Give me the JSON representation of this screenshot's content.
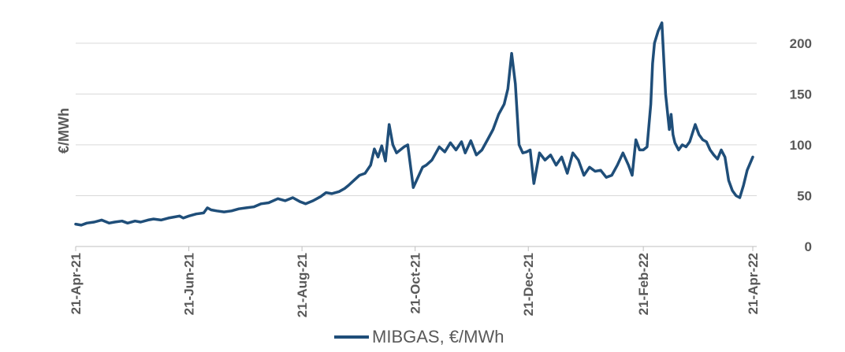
{
  "colors": {
    "series": "#1f4e79",
    "grid": "#d9d9d9",
    "axis_text": "#595959"
  },
  "chart_data": {
    "type": "line",
    "title": "",
    "xlabel": "",
    "ylabel": "€/MWh",
    "ylim": [
      0,
      220
    ],
    "yticks": [
      0,
      50,
      100,
      150,
      200
    ],
    "grid": true,
    "legend_position": "bottom",
    "x_tick_labels": [
      "21-Apr-21",
      "21-Jun-21",
      "21-Aug-21",
      "21-Oct-21",
      "21-Dec-21",
      "21-Feb-22",
      "21-Apr-22"
    ],
    "x_tick_dates": [
      "2021-04-21",
      "2021-06-21",
      "2021-08-21",
      "2021-10-21",
      "2021-12-21",
      "2022-02-21",
      "2022-04-21"
    ],
    "series": [
      {
        "name": "MIBGAS, €/MWh",
        "x": [
          "2021-04-21",
          "2021-04-24",
          "2021-04-27",
          "2021-05-01",
          "2021-05-05",
          "2021-05-09",
          "2021-05-12",
          "2021-05-16",
          "2021-05-19",
          "2021-05-23",
          "2021-05-26",
          "2021-05-30",
          "2021-06-02",
          "2021-06-06",
          "2021-06-10",
          "2021-06-13",
          "2021-06-16",
          "2021-06-18",
          "2021-06-21",
          "2021-06-25",
          "2021-06-29",
          "2021-07-01",
          "2021-07-03",
          "2021-07-06",
          "2021-07-10",
          "2021-07-14",
          "2021-07-18",
          "2021-07-22",
          "2021-07-26",
          "2021-07-30",
          "2021-08-03",
          "2021-08-08",
          "2021-08-12",
          "2021-08-16",
          "2021-08-20",
          "2021-08-23",
          "2021-08-27",
          "2021-08-31",
          "2021-09-03",
          "2021-09-06",
          "2021-09-10",
          "2021-09-13",
          "2021-09-15",
          "2021-09-18",
          "2021-09-21",
          "2021-09-24",
          "2021-09-27",
          "2021-09-29",
          "2021-10-01",
          "2021-10-03",
          "2021-10-05",
          "2021-10-07",
          "2021-10-09",
          "2021-10-11",
          "2021-10-13",
          "2021-10-15",
          "2021-10-17",
          "2021-10-20",
          "2021-10-23",
          "2021-10-25",
          "2021-10-27",
          "2021-10-30",
          "2021-11-03",
          "2021-11-06",
          "2021-11-09",
          "2021-11-12",
          "2021-11-15",
          "2021-11-17",
          "2021-11-20",
          "2021-11-23",
          "2021-11-26",
          "2021-11-29",
          "2021-12-02",
          "2021-12-05",
          "2021-12-08",
          "2021-12-10",
          "2021-12-12",
          "2021-12-14",
          "2021-12-16",
          "2021-12-18",
          "2021-12-20",
          "2021-12-22",
          "2021-12-24",
          "2021-12-27",
          "2021-12-30",
          "2022-01-02",
          "2022-01-05",
          "2022-01-08",
          "2022-01-11",
          "2022-01-14",
          "2022-01-17",
          "2022-01-20",
          "2022-01-23",
          "2022-01-26",
          "2022-01-29",
          "2022-02-01",
          "2022-02-04",
          "2022-02-07",
          "2022-02-10",
          "2022-02-13",
          "2022-02-15",
          "2022-02-17",
          "2022-02-19",
          "2022-02-21",
          "2022-02-23",
          "2022-02-25",
          "2022-02-26",
          "2022-02-27",
          "2022-03-01",
          "2022-03-03",
          "2022-03-05",
          "2022-03-07",
          "2022-03-08",
          "2022-03-09",
          "2022-03-10",
          "2022-03-12",
          "2022-03-14",
          "2022-03-16",
          "2022-03-18",
          "2022-03-21",
          "2022-03-23",
          "2022-03-25",
          "2022-03-27",
          "2022-03-29",
          "2022-03-31",
          "2022-04-02",
          "2022-04-04",
          "2022-04-06",
          "2022-04-08",
          "2022-04-10",
          "2022-04-12",
          "2022-04-14",
          "2022-04-16",
          "2022-04-18",
          "2022-04-21"
        ],
        "values": [
          22,
          21,
          23,
          24,
          26,
          23,
          24,
          25,
          23,
          25,
          24,
          26,
          27,
          26,
          28,
          29,
          30,
          28,
          30,
          32,
          33,
          38,
          36,
          35,
          34,
          35,
          37,
          38,
          39,
          42,
          43,
          47,
          45,
          48,
          44,
          42,
          45,
          49,
          53,
          52,
          54,
          57,
          60,
          65,
          70,
          72,
          80,
          96,
          88,
          99,
          84,
          120,
          100,
          92,
          95,
          98,
          100,
          58,
          70,
          78,
          80,
          85,
          98,
          93,
          102,
          95,
          103,
          92,
          104,
          90,
          95,
          105,
          115,
          130,
          140,
          155,
          190,
          160,
          100,
          92,
          93,
          95,
          62,
          92,
          85,
          90,
          80,
          88,
          72,
          92,
          85,
          70,
          78,
          74,
          75,
          68,
          70,
          80,
          92,
          80,
          70,
          105,
          95,
          95,
          98,
          140,
          180,
          200,
          212,
          220,
          150,
          115,
          130,
          110,
          102,
          95,
          100,
          98,
          103,
          120,
          110,
          105,
          103,
          95,
          90,
          86,
          95,
          88,
          65,
          55,
          50,
          48,
          60,
          75,
          88
        ]
      }
    ]
  }
}
